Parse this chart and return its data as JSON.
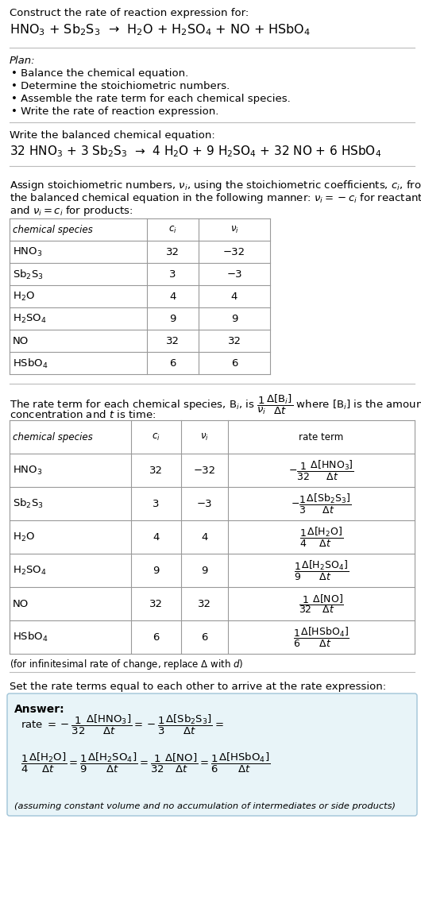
{
  "title_line1": "Construct the rate of reaction expression for:",
  "reaction_unbalanced": "HNO$_3$ + Sb$_2$S$_3$  →  H$_2$O + H$_2$SO$_4$ + NO + HSbO$_4$",
  "plan_header": "Plan:",
  "plan_bullets": [
    "• Balance the chemical equation.",
    "• Determine the stoichiometric numbers.",
    "• Assemble the rate term for each chemical species.",
    "• Write the rate of reaction expression."
  ],
  "balanced_header": "Write the balanced chemical equation:",
  "balanced_eq": "32 HNO$_3$ + 3 Sb$_2$S$_3$  →  4 H$_2$O + 9 H$_2$SO$_4$ + 32 NO + 6 HSbO$_4$",
  "table1_headers": [
    "chemical species",
    "$c_i$",
    "$\\nu_i$"
  ],
  "table1_rows": [
    [
      "HNO$_3$",
      "32",
      "−32"
    ],
    [
      "Sb$_2$S$_3$",
      "3",
      "−3"
    ],
    [
      "H$_2$O",
      "4",
      "4"
    ],
    [
      "H$_2$SO$_4$",
      "9",
      "9"
    ],
    [
      "NO",
      "32",
      "32"
    ],
    [
      "HSbO$_4$",
      "6",
      "6"
    ]
  ],
  "table2_headers": [
    "chemical species",
    "$c_i$",
    "$\\nu_i$",
    "rate term"
  ],
  "table2_rows": [
    [
      "HNO$_3$",
      "32",
      "−32",
      "$-\\dfrac{1}{32}\\dfrac{\\Delta[\\mathrm{HNO_3}]}{\\Delta t}$"
    ],
    [
      "Sb$_2$S$_3$",
      "3",
      "−3",
      "$-\\dfrac{1}{3}\\dfrac{\\Delta[\\mathrm{Sb_2S_3}]}{\\Delta t}$"
    ],
    [
      "H$_2$O",
      "4",
      "4",
      "$\\dfrac{1}{4}\\dfrac{\\Delta[\\mathrm{H_2O}]}{\\Delta t}$"
    ],
    [
      "H$_2$SO$_4$",
      "9",
      "9",
      "$\\dfrac{1}{9}\\dfrac{\\Delta[\\mathrm{H_2SO_4}]}{\\Delta t}$"
    ],
    [
      "NO",
      "32",
      "32",
      "$\\dfrac{1}{32}\\dfrac{\\Delta[\\mathrm{NO}]}{\\Delta t}$"
    ],
    [
      "HSbO$_4$",
      "6",
      "6",
      "$\\dfrac{1}{6}\\dfrac{\\Delta[\\mathrm{HSbO_4}]}{\\Delta t}$"
    ]
  ],
  "infinitesimal_note": "(for infinitesimal rate of change, replace Δ with $d$)",
  "set_equal_text": "Set the rate terms equal to each other to arrive at the rate expression:",
  "answer_label": "Answer:",
  "answer_box_color": "#e8f4f8",
  "answer_box_border": "#a0c4d8",
  "assuming_note": "(assuming constant volume and no accumulation of intermediates or side products)",
  "bg_color": "#ffffff",
  "table_line_color": "#999999"
}
